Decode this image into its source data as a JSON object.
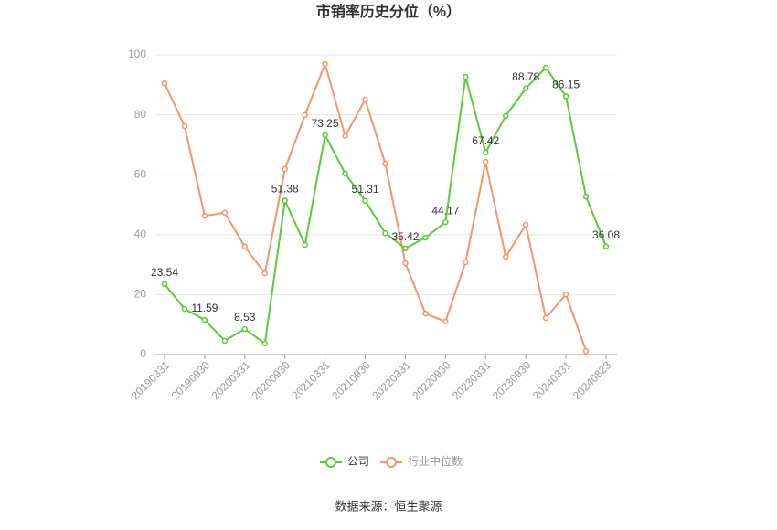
{
  "chart_data": {
    "type": "line",
    "title": "市销率历史分位（%）",
    "categories": [
      "20190331",
      null,
      "20190930",
      null,
      "20200331",
      null,
      "20200930",
      null,
      "20210331",
      null,
      "20210930",
      null,
      "20220331",
      null,
      "20220930",
      null,
      "20230331",
      null,
      "20230930",
      null,
      "20240331",
      null,
      "20240823"
    ],
    "series": [
      {
        "name": "公司",
        "color": "#5cc93a",
        "values": [
          23.54,
          15.2,
          11.59,
          4.6,
          8.53,
          3.7,
          51.38,
          36.6,
          73.25,
          60.4,
          51.31,
          40.5,
          35.42,
          39.0,
          44.17,
          92.7,
          67.42,
          79.6,
          88.78,
          95.7,
          86.15,
          52.7,
          36.08
        ],
        "value_labels": [
          "23.54",
          null,
          "11.59",
          null,
          "8.53",
          null,
          "51.38",
          null,
          "73.25",
          null,
          "51.31",
          null,
          "35.42",
          null,
          "44.17",
          null,
          "67.42",
          null,
          "88.78",
          null,
          "86.15",
          null,
          "36.08"
        ]
      },
      {
        "name": "行业中位数",
        "color": "#f4956b",
        "values": [
          90.5,
          76.2,
          46.3,
          47.3,
          36.0,
          27.1,
          61.9,
          79.9,
          97.0,
          72.9,
          85.1,
          63.7,
          30.5,
          13.7,
          11.0,
          30.8,
          64.3,
          32.6,
          43.3,
          12.2,
          20.1,
          1.2,
          null
        ]
      }
    ],
    "ylim": [
      0,
      100
    ],
    "yticks": [
      0,
      20,
      40,
      60,
      80,
      100
    ],
    "grid": true,
    "source": "数据来源：恒生聚源"
  }
}
